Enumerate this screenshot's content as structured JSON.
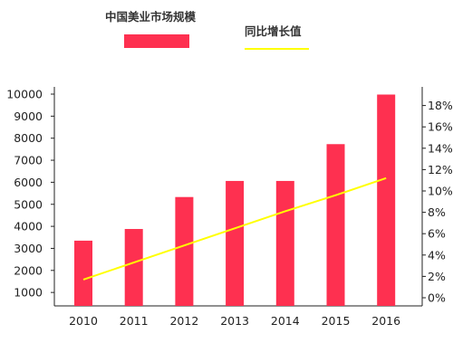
{
  "chart_data": {
    "type": "bar",
    "categories": [
      "2010",
      "2011",
      "2012",
      "2013",
      "2014",
      "2015",
      "2016"
    ],
    "series": [
      {
        "name": "中国美业市场规模",
        "type": "bar",
        "axis": "left",
        "values": [
          3350,
          3880,
          5330,
          6060,
          6060,
          7730,
          9980
        ],
        "color": "#fe3050"
      },
      {
        "name": "同比增长值",
        "type": "line",
        "axis": "right",
        "values": [
          1.7,
          3.3,
          4.9,
          6.5,
          8.1,
          9.6,
          11.2
        ],
        "color": "#ffff00"
      }
    ],
    "y_left": {
      "ticks": [
        "1000",
        "2000",
        "3000",
        "4000",
        "5000",
        "6000",
        "7000",
        "8000",
        "9000",
        "10000"
      ],
      "ylim": [
        0,
        10000
      ]
    },
    "y_right": {
      "ticks": [
        "0%",
        "2%",
        "4%",
        "6%",
        "8%",
        "10%",
        "12%",
        "14%",
        "16%",
        "18%"
      ],
      "ylim": [
        0,
        18
      ]
    },
    "legend": {
      "position": "top"
    },
    "grid": false
  }
}
